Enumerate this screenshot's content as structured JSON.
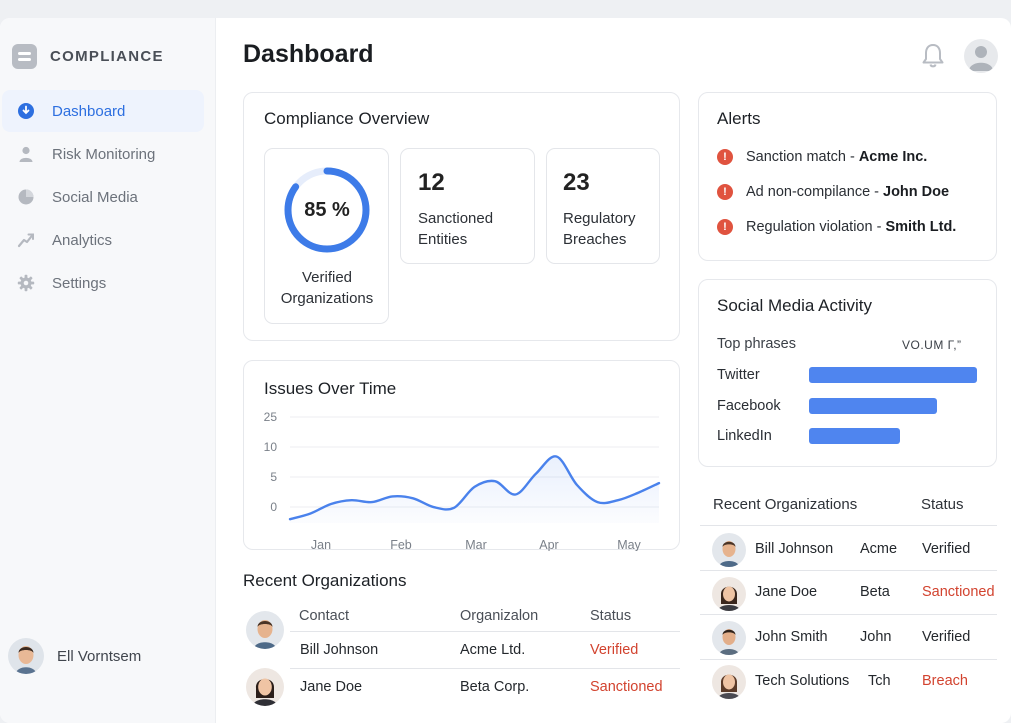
{
  "app": {
    "brand": "COMPLIANCE"
  },
  "sidebar": {
    "items": [
      {
        "label": "Dashboard",
        "icon": "dashboard-icon",
        "active": true
      },
      {
        "label": "Risk Monitoring",
        "icon": "person-icon"
      },
      {
        "label": "Social Media",
        "icon": "pie-chart-icon"
      },
      {
        "label": "Analytics",
        "icon": "trend-arrow-icon"
      },
      {
        "label": "Settings",
        "icon": "gear-icon"
      }
    ],
    "user": {
      "name": "Ell Vorntsem"
    }
  },
  "header": {
    "title": "Dashboard",
    "icons": [
      "bell-icon",
      "user-avatar-icon"
    ]
  },
  "overview": {
    "title": "Compliance Overview",
    "verified": {
      "value": "85 %",
      "percent": 85,
      "label_line1": "Verified",
      "label_line2": "Organizations"
    },
    "sanctioned": {
      "value": "12",
      "label_line1": "Sanctioned",
      "label_line2": "Entities"
    },
    "breaches": {
      "value": "23",
      "label_line1": "Regulatory",
      "label_line2": "Breaches"
    }
  },
  "alerts": {
    "title": "Alerts",
    "items": [
      {
        "text": "Sanction match - ",
        "bold": "Acme Inc."
      },
      {
        "text": "Ad non-compilance - ",
        "bold": "John Doe"
      },
      {
        "text": "Regulation violation - ",
        "bold": "Smith Ltd."
      }
    ]
  },
  "issues": {
    "title": "Issues Over Time"
  },
  "chart_data": {
    "type": "line",
    "title": "Issues Over Time",
    "categories": [
      "Jan",
      "Feb",
      "Mar",
      "Apr",
      "May"
    ],
    "y_ticks": [
      "25",
      "10",
      "5",
      "0"
    ],
    "x": [
      0,
      0.5,
      1,
      1.5,
      2,
      2.5,
      3,
      3.5,
      4,
      4.5,
      5,
      5.5,
      6,
      6.5,
      7,
      7.5,
      8,
      8.5,
      9
    ],
    "values": [
      1,
      2.5,
      5,
      6,
      5.5,
      7,
      6.5,
      4.2,
      4,
      9.5,
      11,
      7.5,
      13,
      17.5,
      10,
      5.5,
      6,
      8,
      10.5
    ],
    "ylim": [
      0,
      30
    ],
    "grid": true,
    "line_color": "#4a82ec"
  },
  "social": {
    "title": "Social Media Activity",
    "col1": "Top phrases",
    "col2": "VO.UM Г,”",
    "rows": [
      {
        "label": "Twitter",
        "value": 1.0
      },
      {
        "label": "Facebook",
        "value": 0.76
      },
      {
        "label": "LinkedIn",
        "value": 0.54
      }
    ],
    "bar_color": "#4f85ef"
  },
  "recent_left": {
    "title": "Recent Organizations",
    "headers": [
      "Contact",
      "Organizalon",
      "Status"
    ],
    "rows": [
      {
        "contact": "Bill Johnson",
        "org": "Acme Ltd.",
        "status": "Verified"
      },
      {
        "contact": "Jane Doe",
        "org": "Beta Corp.",
        "status": "Sanctioned"
      }
    ]
  },
  "recent_right": {
    "title": "Recent Organizations",
    "status_header": "Status",
    "rows": [
      {
        "name": "Bill Johnson",
        "org": "Acme",
        "status": "Verified"
      },
      {
        "name": "Jane Doe",
        "org": "Beta",
        "status": "Sanctioned"
      },
      {
        "name": "John Smith",
        "org": "John",
        "status": "Verified"
      },
      {
        "name": "Tech Solutions",
        "org": "Tch",
        "status": "Breach"
      }
    ]
  },
  "colors": {
    "accent": "#2d6fe0",
    "danger": "#d2432f",
    "ring": "#3d7be8"
  }
}
